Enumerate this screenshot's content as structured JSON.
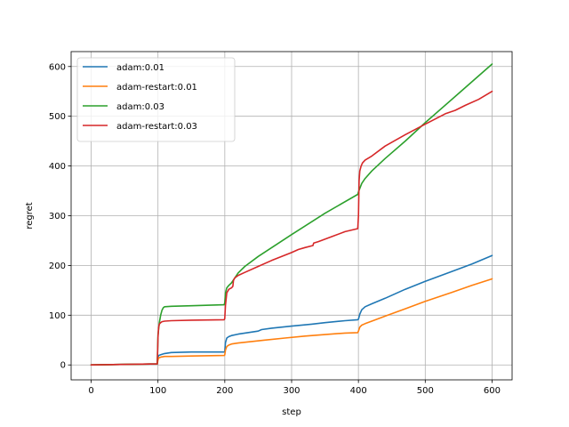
{
  "chart_data": {
    "type": "line",
    "xlabel": "step",
    "ylabel": "regret",
    "xlim": [
      -30,
      630
    ],
    "ylim": [
      -30,
      630
    ],
    "xticks": [
      0,
      100,
      200,
      300,
      400,
      500,
      600
    ],
    "yticks": [
      0,
      100,
      200,
      300,
      400,
      500,
      600
    ],
    "grid": true,
    "legend_position": "upper-left",
    "series": [
      {
        "name": "adam:0.01",
        "color": "#1f77b4",
        "x": [
          0,
          99,
          100,
          101,
          105,
          110,
          120,
          150,
          199,
          200,
          201,
          203,
          206,
          210,
          220,
          240,
          250,
          255,
          270,
          300,
          330,
          350,
          380,
          399,
          400,
          402,
          405,
          410,
          420,
          440,
          470,
          500,
          540,
          570,
          600
        ],
        "y": [
          0,
          2,
          15,
          19,
          21,
          23,
          25,
          26,
          26,
          27,
          45,
          54,
          57,
          59,
          62,
          66,
          68,
          71,
          74,
          78,
          82,
          85,
          89,
          91,
          92,
          102,
          111,
          117,
          123,
          134,
          152,
          168,
          188,
          203,
          220
        ]
      },
      {
        "name": "adam-restart:0.01",
        "color": "#ff7f0e",
        "x": [
          0,
          99,
          100,
          101,
          105,
          110,
          120,
          150,
          199,
          200,
          201,
          203,
          206,
          210,
          220,
          240,
          260,
          290,
          320,
          350,
          380,
          399,
          400,
          402,
          405,
          410,
          420,
          440,
          470,
          500,
          540,
          570,
          600
        ],
        "y": [
          0,
          2,
          10,
          14,
          16,
          17,
          17,
          18,
          19,
          20,
          30,
          37,
          40,
          42,
          44,
          47,
          50,
          54,
          58,
          61,
          64,
          65,
          68,
          76,
          80,
          83,
          88,
          98,
          113,
          128,
          146,
          160,
          173
        ]
      },
      {
        "name": "adam:0.03",
        "color": "#2ca02c",
        "x": [
          0,
          99,
          100,
          102,
          104,
          106,
          108,
          110,
          120,
          150,
          199,
          200,
          201,
          203,
          206,
          210,
          215,
          220,
          230,
          250,
          300,
          350,
          399,
          400,
          402,
          405,
          410,
          420,
          440,
          470,
          500,
          550,
          600
        ],
        "y": [
          0,
          2,
          60,
          85,
          100,
          110,
          115,
          117,
          118,
          119,
          121,
          125,
          145,
          155,
          160,
          165,
          175,
          185,
          198,
          218,
          262,
          305,
          343,
          348,
          355,
          365,
          375,
          390,
          415,
          450,
          487,
          546,
          605
        ]
      },
      {
        "name": "adam-restart:0.03",
        "color": "#d62728",
        "x": [
          0,
          99,
          100,
          101,
          102,
          104,
          106,
          110,
          120,
          150,
          199,
          200,
          201,
          203,
          206,
          210,
          212,
          213,
          215,
          220,
          230,
          250,
          270,
          300,
          310,
          320,
          332,
          333,
          340,
          360,
          380,
          399,
          400,
          401,
          402,
          404,
          406,
          410,
          420,
          440,
          470,
          500,
          530,
          545,
          560,
          580,
          600
        ],
        "y": [
          0,
          2,
          55,
          75,
          82,
          85,
          87,
          88,
          89,
          90,
          91,
          93,
          120,
          145,
          152,
          155,
          158,
          170,
          175,
          180,
          186,
          198,
          210,
          226,
          232,
          236,
          240,
          245,
          248,
          258,
          268,
          274,
          300,
          370,
          390,
          400,
          406,
          412,
          420,
          440,
          463,
          484,
          505,
          512,
          522,
          534,
          550
        ]
      }
    ]
  }
}
